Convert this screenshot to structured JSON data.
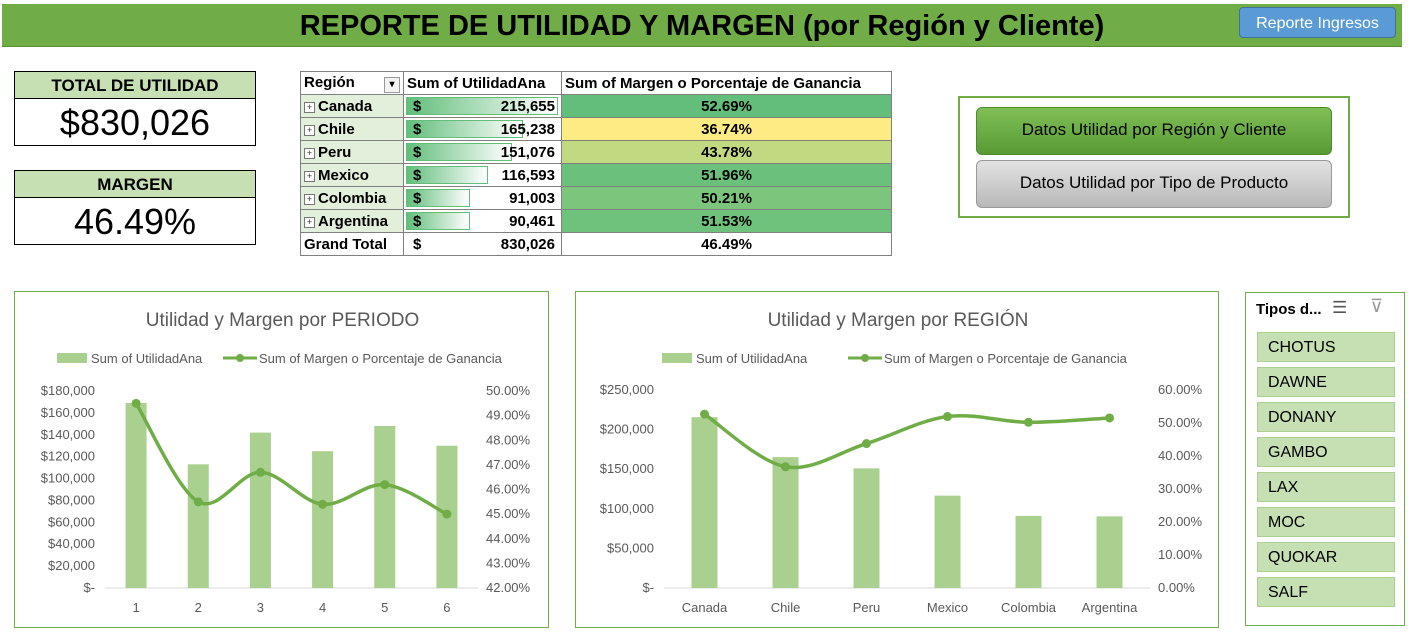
{
  "header": {
    "title": "REPORTE DE UTILIDAD Y MARGEN (por Región y Cliente)",
    "button_ingresos": "Reporte Ingresos"
  },
  "kpis": {
    "utilidad": {
      "label": "TOTAL DE UTILIDAD",
      "value": "$830,026"
    },
    "margen": {
      "label": "MARGEN",
      "value": "46.49%"
    }
  },
  "pivot": {
    "headers": [
      "Región",
      "Sum of UtilidadAna",
      "Sum of Margen o Porcentaje de Ganancia"
    ],
    "currency": "$",
    "rows": [
      {
        "region": "Canada",
        "utilidad": "215,655",
        "margen": "52.69%",
        "bar_fraction": 1.0,
        "color": "#63BE7B"
      },
      {
        "region": "Chile",
        "utilidad": "165,238",
        "margen": "36.74%",
        "bar_fraction": 0.77,
        "color": "#FFEB84"
      },
      {
        "region": "Peru",
        "utilidad": "151,076",
        "margen": "43.78%",
        "bar_fraction": 0.7,
        "color": "#C1DA81"
      },
      {
        "region": "Mexico",
        "utilidad": "116,593",
        "margen": "51.96%",
        "bar_fraction": 0.54,
        "color": "#6BC17C"
      },
      {
        "region": "Colombia",
        "utilidad": "91,003",
        "margen": "50.21%",
        "bar_fraction": 0.42,
        "color": "#7CC57D"
      },
      {
        "region": "Argentina",
        "utilidad": "90,461",
        "margen": "51.53%",
        "bar_fraction": 0.42,
        "color": "#6FC27C"
      }
    ],
    "total": {
      "label": "Grand Total",
      "utilidad": "830,026",
      "margen": "46.49%"
    }
  },
  "buttons": {
    "region_cliente": "Datos Utilidad por Región y Cliente",
    "tipo_producto": "Datos Utilidad por Tipo de Producto"
  },
  "slicer": {
    "title": "Tipos d...",
    "items": [
      "CHOTUS",
      "DAWNE",
      "DONANY",
      "GAMBO",
      "LAX",
      "MOC",
      "QUOKAR",
      "SALF"
    ]
  },
  "colors": {
    "accent": "#70AD47",
    "bar": "#A9D08E",
    "line": "#70AD47",
    "pill": "#C6E0B4"
  },
  "chart_data": [
    {
      "type": "bar",
      "title": "Utilidad y Margen por PERIODO",
      "categories": [
        "1",
        "2",
        "3",
        "4",
        "5",
        "6"
      ],
      "series": [
        {
          "name": "Sum of UtilidadAna",
          "type": "bar",
          "axis": "left",
          "values": [
            169000,
            113000,
            142000,
            125000,
            148000,
            130000
          ]
        },
        {
          "name": "Sum of Margen o Porcentaje de Ganancia",
          "type": "line",
          "axis": "right",
          "values": [
            49.5,
            45.5,
            46.7,
            45.4,
            46.2,
            45.0
          ]
        }
      ],
      "left_axis": {
        "min": 0,
        "max": 180000,
        "step": 20000,
        "ticks": [
          "$-",
          "$20,000",
          "$40,000",
          "$60,000",
          "$80,000",
          "$100,000",
          "$120,000",
          "$140,000",
          "$160,000",
          "$180,000"
        ]
      },
      "right_axis": {
        "min": 42,
        "max": 50,
        "step": 1,
        "ticks": [
          "42.00%",
          "43.00%",
          "44.00%",
          "45.00%",
          "46.00%",
          "47.00%",
          "48.00%",
          "49.00%",
          "50.00%"
        ]
      },
      "legend": "top"
    },
    {
      "type": "bar",
      "title": "Utilidad y Margen por REGIÓN",
      "categories": [
        "Canada",
        "Chile",
        "Peru",
        "Mexico",
        "Colombia",
        "Argentina"
      ],
      "series": [
        {
          "name": "Sum of UtilidadAna",
          "type": "bar",
          "axis": "left",
          "values": [
            215655,
            165238,
            151076,
            116593,
            91003,
            90461
          ]
        },
        {
          "name": "Sum of Margen o Porcentaje de Ganancia",
          "type": "line",
          "axis": "right",
          "values": [
            52.69,
            36.74,
            43.78,
            51.96,
            50.21,
            51.53
          ]
        }
      ],
      "left_axis": {
        "min": 0,
        "max": 250000,
        "step": 50000,
        "ticks": [
          "$-",
          "$50,000",
          "$100,000",
          "$150,000",
          "$200,000",
          "$250,000"
        ]
      },
      "right_axis": {
        "min": 0,
        "max": 60,
        "step": 10,
        "ticks": [
          "0.00%",
          "10.00%",
          "20.00%",
          "30.00%",
          "40.00%",
          "50.00%",
          "60.00%"
        ]
      },
      "legend": "top"
    }
  ]
}
